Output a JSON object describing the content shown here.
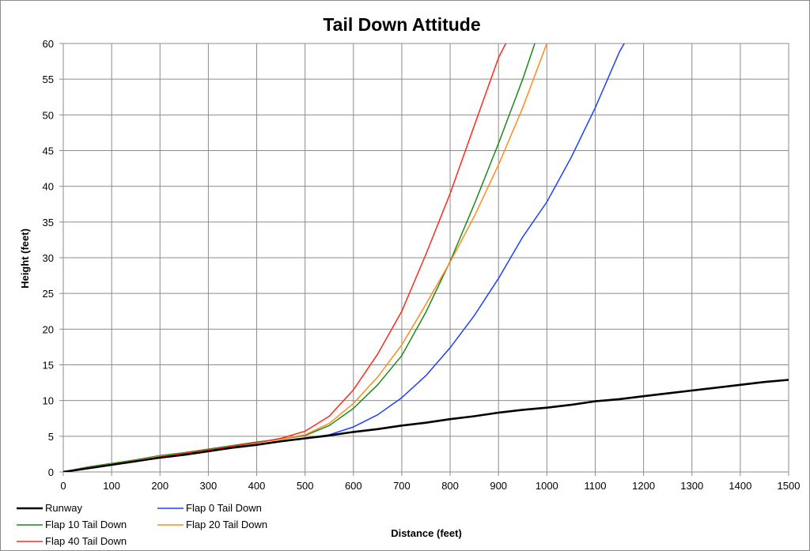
{
  "chart_data": {
    "type": "line",
    "title": "Tail Down Attitude",
    "xlabel": "Distance (feet)",
    "ylabel": "Height (feet)",
    "xlim": [
      0,
      1500
    ],
    "ylim": [
      0,
      60
    ],
    "xticks": [
      0,
      100,
      200,
      300,
      400,
      500,
      600,
      700,
      800,
      900,
      1000,
      1100,
      1200,
      1300,
      1400,
      1500
    ],
    "yticks": [
      0,
      5,
      10,
      15,
      20,
      25,
      30,
      35,
      40,
      45,
      50,
      55,
      60
    ],
    "grid": true,
    "legend_position": "bottom-left",
    "series": [
      {
        "name": "Runway",
        "color": "#000000",
        "x": [
          0,
          50,
          100,
          150,
          200,
          250,
          300,
          350,
          400,
          450,
          500,
          550,
          600,
          650,
          700,
          750,
          800,
          850,
          900,
          950,
          1000,
          1050,
          1100,
          1150,
          1200,
          1250,
          1300,
          1350,
          1400,
          1450,
          1500
        ],
        "y": [
          0,
          0.5,
          1.0,
          1.5,
          2.0,
          2.4,
          2.9,
          3.4,
          3.8,
          4.3,
          4.7,
          5.1,
          5.6,
          6.0,
          6.5,
          6.9,
          7.4,
          7.8,
          8.3,
          8.7,
          9.0,
          9.4,
          9.9,
          10.2,
          10.6,
          11.0,
          11.4,
          11.8,
          12.2,
          12.6,
          12.9
        ]
      },
      {
        "name": "Flap 0 Tail Down",
        "color": "#1f3fff",
        "x": [
          0,
          50,
          100,
          150,
          200,
          250,
          300,
          350,
          400,
          450,
          500,
          550,
          600,
          650,
          700,
          750,
          800,
          850,
          900,
          950,
          1000,
          1050,
          1100,
          1150,
          1160
        ],
        "y": [
          0,
          0.5,
          1.0,
          1.5,
          2.0,
          2.4,
          2.9,
          3.4,
          3.8,
          4.3,
          4.7,
          5.2,
          6.3,
          8.0,
          10.4,
          13.5,
          17.4,
          21.9,
          27.1,
          32.9,
          37.8,
          44.0,
          51.0,
          58.8,
          60
        ]
      },
      {
        "name": "Flap 10 Tail Down",
        "color": "#1a8a1a",
        "x": [
          0,
          50,
          100,
          150,
          200,
          250,
          300,
          350,
          400,
          450,
          500,
          550,
          600,
          650,
          700,
          750,
          800,
          850,
          900,
          950,
          975
        ],
        "y": [
          0,
          0.7,
          1.2,
          1.7,
          2.3,
          2.7,
          3.2,
          3.7,
          4.2,
          4.6,
          5.1,
          6.5,
          8.9,
          12.2,
          16.3,
          22.4,
          29.5,
          37.5,
          46.0,
          55.0,
          60
        ]
      },
      {
        "name": "Flap 20 Tail Down",
        "color": "#ff8c1a",
        "x": [
          0,
          50,
          100,
          150,
          200,
          250,
          300,
          350,
          400,
          450,
          500,
          550,
          600,
          650,
          700,
          750,
          800,
          850,
          900,
          950,
          1000
        ],
        "y": [
          0,
          0.6,
          1.1,
          1.6,
          2.2,
          2.6,
          3.1,
          3.6,
          4.1,
          4.6,
          5.2,
          6.8,
          9.6,
          13.3,
          17.8,
          23.5,
          29.4,
          35.8,
          43.0,
          51.0,
          60
        ]
      },
      {
        "name": "Flap 40 Tail Down",
        "color": "#ff2a1a",
        "x": [
          0,
          50,
          100,
          150,
          200,
          250,
          300,
          350,
          400,
          450,
          500,
          550,
          600,
          650,
          700,
          750,
          800,
          850,
          900,
          915
        ],
        "y": [
          0,
          0.5,
          1.0,
          1.5,
          2.1,
          2.6,
          3.1,
          3.6,
          4.1,
          4.7,
          5.7,
          7.8,
          11.5,
          16.5,
          22.5,
          30.5,
          39.0,
          48.5,
          58.0,
          60
        ]
      }
    ]
  }
}
